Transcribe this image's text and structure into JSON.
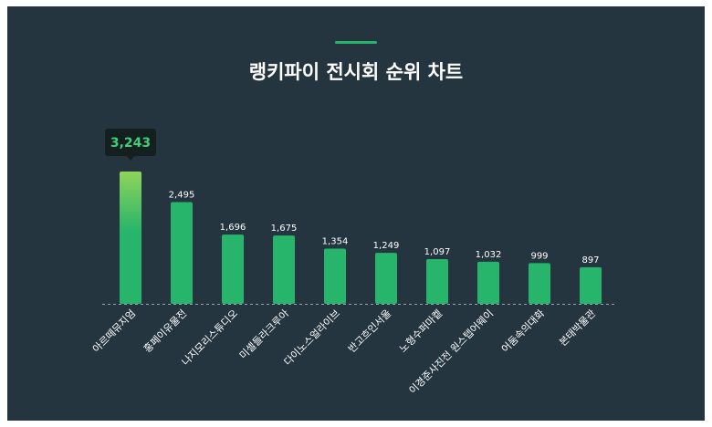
{
  "colors": {
    "background": "#253540",
    "bar": "#27b56b",
    "top_bar_gradient_top": "#8fd45b",
    "accent": "#27b56b",
    "baseline": "#9aa3a9",
    "value_label": "#ffffff",
    "tooltip_bg": "#14201f",
    "tooltip_text": "#3fcf7a",
    "title": "#ffffff"
  },
  "chart_data": {
    "type": "bar",
    "title": "랭키파이 전시회 순위 차트",
    "categories": [
      "아르떼뮤지엄",
      "홍페이유물전",
      "나지모리스튜디오",
      "미셸들라크루아",
      "다이노스얼라이브",
      "반고흐인서울",
      "노형수퍼마켙",
      "이경준사진전 원스텝어웨이",
      "어둠속의대화",
      "본태박물관"
    ],
    "values": [
      3243,
      2495,
      1696,
      1675,
      1354,
      1249,
      1097,
      1032,
      999,
      897
    ],
    "value_labels": [
      "3,243",
      "2,495",
      "1,696",
      "1,675",
      "1,354",
      "1,249",
      "1,097",
      "1,032",
      "999",
      "897"
    ],
    "highlight": {
      "index": 0,
      "label": "3,243"
    },
    "ylim": [
      0,
      3243
    ],
    "grid": false,
    "legend": "none"
  }
}
